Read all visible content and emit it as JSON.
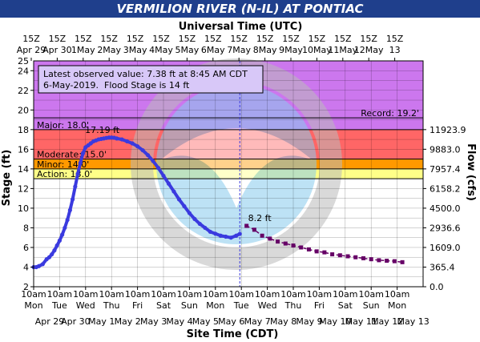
{
  "title": "VERMILION RIVER (N-IL) AT PONTIAC",
  "chart_data": {
    "type": "line",
    "top_axis_title": "Universal Time (UTC)",
    "bottom_axis_title": "Site Time (CDT)",
    "ylabel": "Stage (ft)",
    "y2label": "Flow (cfs)",
    "ylim": [
      2,
      25
    ],
    "y_ticks": [
      2,
      4,
      6,
      8,
      10,
      12,
      14,
      16,
      18,
      20,
      22,
      24
    ],
    "y_top_label": "25",
    "x_range_days": [
      0,
      15
    ],
    "top_ticks": [
      {
        "t1": "15Z",
        "t2": "Apr 29"
      },
      {
        "t1": "15Z",
        "t2": "Apr 30"
      },
      {
        "t1": "15Z",
        "t2": "1May"
      },
      {
        "t1": "15Z",
        "t2": "2May"
      },
      {
        "t1": "15Z",
        "t2": "3May"
      },
      {
        "t1": "15Z",
        "t2": "4May"
      },
      {
        "t1": "15Z",
        "t2": "5May"
      },
      {
        "t1": "15Z",
        "t2": "6May"
      },
      {
        "t1": "15Z",
        "t2": "7May"
      },
      {
        "t1": "15Z",
        "t2": "8May"
      },
      {
        "t1": "15Z",
        "t2": "9May"
      },
      {
        "t1": "15Z",
        "t2": "10May"
      },
      {
        "t1": "15Z",
        "t2": "11May"
      },
      {
        "t1": "15Z",
        "t2": "12May"
      },
      {
        "t1": "15Z",
        "t2": "13"
      }
    ],
    "bottom_ticks": [
      {
        "t1": "10am",
        "t2": "Mon",
        "t3": "Apr 29"
      },
      {
        "t1": "10am",
        "t2": "Tue",
        "t3": "Apr 30"
      },
      {
        "t1": "10am",
        "t2": "Wed",
        "t3": "May 1"
      },
      {
        "t1": "10am",
        "t2": "Thu",
        "t3": "May 2"
      },
      {
        "t1": "10am",
        "t2": "Fri",
        "t3": "May 3"
      },
      {
        "t1": "10am",
        "t2": "Sat",
        "t3": "May 4"
      },
      {
        "t1": "10am",
        "t2": "Sun",
        "t3": "May 5"
      },
      {
        "t1": "10am",
        "t2": "Mon",
        "t3": "May 6"
      },
      {
        "t1": "10am",
        "t2": "Tue",
        "t3": "May 7"
      },
      {
        "t1": "10am",
        "t2": "Wed",
        "t3": "May 8"
      },
      {
        "t1": "10am",
        "t2": "Thu",
        "t3": "May 9"
      },
      {
        "t1": "10am",
        "t2": "Fri",
        "t3": "May 10"
      },
      {
        "t1": "10am",
        "t2": "Sat",
        "t3": "May 11"
      },
      {
        "t1": "10am",
        "t2": "Sun",
        "t3": "May 12"
      },
      {
        "t1": "10am",
        "t2": "Mon",
        "t3": "May 13"
      }
    ],
    "flow_ticks": [
      {
        "stage": 4,
        "label": "365.4"
      },
      {
        "stage": 6,
        "label": "1609.0"
      },
      {
        "stage": 8,
        "label": "2936.6"
      },
      {
        "stage": 10,
        "label": "4500.0"
      },
      {
        "stage": 12,
        "label": "6158.2"
      },
      {
        "stage": 14,
        "label": "7957.4"
      },
      {
        "stage": 16,
        "label": "9883.0"
      },
      {
        "stage": 18,
        "label": "11923.9"
      },
      {
        "stage": 2,
        "label": "0.0"
      }
    ],
    "bands": [
      {
        "name": "action",
        "from": 13,
        "to": 14,
        "color": "#ffff88"
      },
      {
        "name": "minor",
        "from": 14,
        "to": 15,
        "color": "#ff9900"
      },
      {
        "name": "moderate",
        "from": 15,
        "to": 18,
        "color": "#ff6666"
      },
      {
        "name": "major",
        "from": 18,
        "to": 25,
        "color": "#cc77ee"
      }
    ],
    "thresholds": [
      {
        "name": "action",
        "stage": 13,
        "label": "Action: 13.0'"
      },
      {
        "name": "minor",
        "stage": 14,
        "label": "Minor: 14.0'"
      },
      {
        "name": "moderate",
        "stage": 15,
        "label": "Moderate: 15.0'"
      },
      {
        "name": "major",
        "stage": 18,
        "label": "Major: 18.0'"
      },
      {
        "name": "record",
        "stage": 19.2,
        "label": "Record: 19.2'"
      }
    ],
    "observed": {
      "color": "#3a3adf",
      "x": [
        0,
        0.1,
        0.2,
        0.35,
        0.5,
        0.6,
        0.7,
        0.8,
        0.9,
        1.0,
        1.1,
        1.2,
        1.3,
        1.4,
        1.5,
        1.6,
        1.7,
        1.8,
        1.9,
        2.0,
        2.1,
        2.2,
        2.3,
        2.4,
        2.5,
        2.6,
        2.7,
        2.8,
        2.9,
        3.0,
        3.1,
        3.2,
        3.4,
        3.6,
        3.8,
        4.0,
        4.2,
        4.4,
        4.6,
        4.8,
        5.0,
        5.2,
        5.4,
        5.6,
        5.8,
        6.0,
        6.2,
        6.4,
        6.6,
        6.8,
        7.0,
        7.2,
        7.4,
        7.6,
        7.8,
        7.94
      ],
      "y": [
        4.0,
        4.0,
        4.1,
        4.3,
        4.8,
        5.0,
        5.3,
        5.7,
        6.2,
        6.7,
        7.3,
        8.0,
        8.8,
        9.8,
        10.9,
        12.2,
        13.5,
        14.6,
        15.6,
        16.2,
        16.4,
        16.6,
        16.8,
        16.9,
        17.0,
        17.05,
        17.1,
        17.15,
        17.19,
        17.19,
        17.17,
        17.1,
        17.0,
        16.8,
        16.6,
        16.3,
        15.9,
        15.4,
        14.8,
        14.1,
        13.3,
        12.5,
        11.7,
        10.9,
        10.2,
        9.5,
        8.9,
        8.4,
        8.0,
        7.6,
        7.4,
        7.2,
        7.1,
        7.0,
        7.2,
        7.38
      ]
    },
    "forecast": {
      "color": "#660066",
      "x": [
        8.2,
        8.5,
        8.8,
        9.1,
        9.4,
        9.7,
        10.0,
        10.3,
        10.6,
        10.9,
        11.2,
        11.5,
        11.8,
        12.1,
        12.4,
        12.7,
        13.0,
        13.3,
        13.6,
        13.9,
        14.2
      ],
      "y": [
        8.2,
        7.8,
        7.2,
        6.9,
        6.6,
        6.4,
        6.2,
        6.0,
        5.8,
        5.6,
        5.5,
        5.3,
        5.2,
        5.1,
        5.0,
        4.9,
        4.8,
        4.7,
        4.65,
        4.6,
        4.5
      ]
    },
    "observed_time_x": 7.94,
    "crest_label": "17.19 ft",
    "crest_x": 2.95,
    "crest_y": 17.19,
    "forecast_label": "8.2 ft",
    "forecast_label_x": 8.2,
    "forecast_label_y": 8.2,
    "info_box": {
      "line1": "Latest observed value: 7.38 ft at 8:45 AM CDT",
      "line2_a": "6-May-2019.",
      "line2_b": "Flood Stage is 14 ft"
    },
    "colors": {
      "title_bar": "#1f3f8c",
      "info_text": "#3333cc",
      "grid": "#000000"
    }
  }
}
